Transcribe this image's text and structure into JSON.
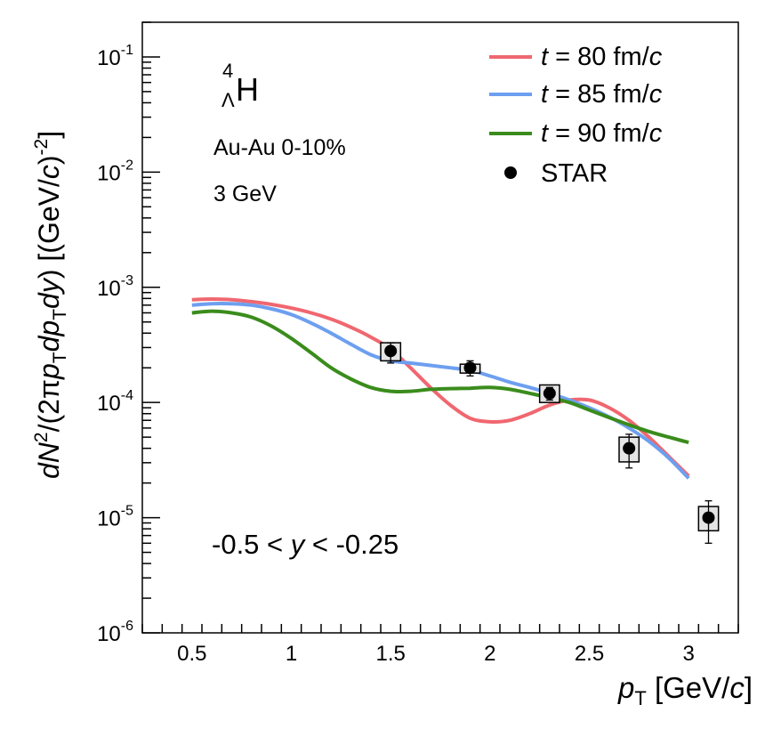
{
  "chart_data": {
    "type": "line",
    "scale": {
      "x": "linear",
      "y": "log"
    },
    "xlim": [
      0.25,
      3.25
    ],
    "ylim": [
      1e-06,
      0.2
    ],
    "xticks": [
      {
        "v": 0.5,
        "label": "0.5"
      },
      {
        "v": 1,
        "label": "1"
      },
      {
        "v": 1.5,
        "label": "1.5"
      },
      {
        "v": 2,
        "label": "2"
      },
      {
        "v": 2.5,
        "label": "2.5"
      },
      {
        "v": 3,
        "label": "3"
      }
    ],
    "yticks": [
      {
        "v": 1e-06,
        "exp": "-6"
      },
      {
        "v": 1e-05,
        "exp": "-5"
      },
      {
        "v": 0.0001,
        "exp": "-4"
      },
      {
        "v": 0.001,
        "exp": "-3"
      },
      {
        "v": 0.01,
        "exp": "-2"
      },
      {
        "v": 0.1,
        "exp": "-1"
      }
    ],
    "tick_base": "10",
    "xlabel": {
      "main": "p",
      "sub": "T",
      "unit_open": " [GeV/",
      "unit_c": "c",
      "unit_close": "]"
    },
    "ylabel": {
      "d1": "dN",
      "sup1": "2",
      "p1": "/(2",
      "pi": "π",
      "p": "p",
      "sub1": "T",
      "dp": "dp",
      "sub2": "T",
      "dy": "dy",
      "p2": ") [(GeV/",
      "c": "c",
      "p3": ")",
      "sup2": "-2",
      "p4": "]"
    },
    "annotations": {
      "particle": {
        "super": "4",
        "sub": "Λ",
        "main": "H"
      },
      "system": "Au-Au 0-10%",
      "energy": "3 GeV",
      "rapidity": {
        "pre": "-0.5 < ",
        "var": "y",
        "post": " < -0.25"
      }
    },
    "legend": {
      "placement": "top-right",
      "entries": [
        {
          "kind": "line",
          "var": "t",
          "text": " = 80 fm/",
          "unit": "c",
          "color": "#f06770"
        },
        {
          "kind": "line",
          "var": "t",
          "text": " = 85 fm/",
          "unit": "c",
          "color": "#6d9ff0"
        },
        {
          "kind": "line",
          "var": "t",
          "text": " = 90 fm/",
          "unit": "c",
          "color": "#3a8c1c"
        },
        {
          "kind": "marker",
          "text": "STAR",
          "color": "#000000"
        }
      ]
    },
    "series": [
      {
        "name": "t = 80 fm/c",
        "color": "#f06770",
        "x": [
          0.5,
          0.6,
          0.7,
          0.8,
          0.9,
          1.0,
          1.1,
          1.2,
          1.3,
          1.4,
          1.5,
          1.6,
          1.7,
          1.8,
          1.9,
          2.0,
          2.1,
          2.2,
          2.3,
          2.4,
          2.5,
          2.6,
          2.7,
          2.8,
          2.9,
          3.0
        ],
        "y": [
          0.00078,
          0.00079,
          0.00078,
          0.00075,
          0.00071,
          0.00066,
          0.0006,
          0.00053,
          0.00045,
          0.00037,
          0.00029,
          0.0002,
          0.000135,
          9.5e-05,
          7.3e-05,
          6.8e-05,
          7e-05,
          8e-05,
          9.5e-05,
          0.000105,
          0.000105,
          9e-05,
          7e-05,
          5e-05,
          3.4e-05,
          2.3e-05
        ]
      },
      {
        "name": "t = 85 fm/c",
        "color": "#6d9ff0",
        "x": [
          0.5,
          0.6,
          0.7,
          0.8,
          0.9,
          1.0,
          1.1,
          1.2,
          1.3,
          1.4,
          1.5,
          1.6,
          1.7,
          1.8,
          1.9,
          2.0,
          2.1,
          2.2,
          2.3,
          2.4,
          2.5,
          2.6,
          2.7,
          2.8,
          2.9,
          3.0
        ],
        "y": [
          0.0007,
          0.00072,
          0.00072,
          0.0007,
          0.00065,
          0.00058,
          0.00049,
          0.0004,
          0.00032,
          0.00026,
          0.00023,
          0.00022,
          0.00021,
          0.0002,
          0.00019,
          0.00017,
          0.00015,
          0.000135,
          0.00012,
          0.000105,
          9e-05,
          7.5e-05,
          6e-05,
          4.6e-05,
          3.3e-05,
          2.2e-05
        ]
      },
      {
        "name": "t = 90 fm/c",
        "color": "#3a8c1c",
        "x": [
          0.5,
          0.6,
          0.7,
          0.8,
          0.9,
          1.0,
          1.1,
          1.2,
          1.3,
          1.4,
          1.5,
          1.6,
          1.7,
          1.8,
          1.9,
          2.0,
          2.1,
          2.2,
          2.3,
          2.4,
          2.5,
          2.6,
          2.7,
          2.8,
          2.9,
          3.0
        ],
        "y": [
          0.0006,
          0.00062,
          0.0006,
          0.00055,
          0.00046,
          0.00036,
          0.00027,
          0.0002,
          0.00016,
          0.000135,
          0.000125,
          0.000125,
          0.00013,
          0.000132,
          0.000133,
          0.000135,
          0.00013,
          0.00012,
          0.00011,
          0.0001,
          8.6e-05,
          7.4e-05,
          6.4e-05,
          5.6e-05,
          5e-05,
          4.5e-05
        ]
      }
    ],
    "points": {
      "name": "STAR",
      "color": "#000000",
      "x": [
        1.5,
        1.9,
        2.3,
        2.7,
        3.1
      ],
      "y": [
        0.00028,
        0.0002,
        0.00012,
        4e-05,
        1e-05
      ],
      "stat_lo": [
        0.00022,
        0.00017,
        0.000105,
        2.7e-05,
        6e-06
      ],
      "stat_hi": [
        0.00033,
        0.00023,
        0.000135,
        5.3e-05,
        1.4e-05
      ],
      "sys_lo": [
        0.00023,
        0.00018,
        0.0001,
        3.05e-05,
        7.7e-06
      ],
      "sys_hi": [
        0.00033,
        0.000215,
        0.000142,
        5e-05,
        1.25e-05
      ],
      "sys_dx": 0.05
    }
  }
}
